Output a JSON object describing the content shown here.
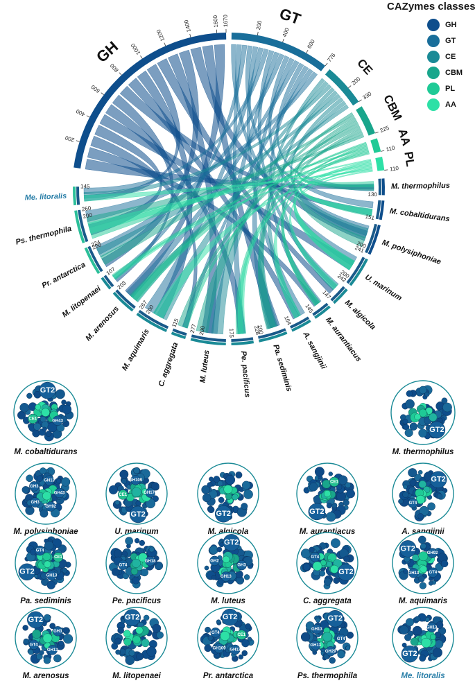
{
  "legend": {
    "title": "CAZymes classes",
    "items": [
      {
        "label": "GH",
        "color": "#0e4e8c"
      },
      {
        "label": "GT",
        "color": "#196e9a"
      },
      {
        "label": "CE",
        "color": "#1a8a96"
      },
      {
        "label": "CBM",
        "color": "#19a68c"
      },
      {
        "label": "PL",
        "color": "#1fca96"
      },
      {
        "label": "AA",
        "color": "#2de0a6"
      }
    ]
  },
  "chord": {
    "classes": [
      {
        "label": "GH",
        "ticks": [
          "200",
          "400",
          "600",
          "800",
          "1000",
          "1200",
          "1400",
          "1600"
        ],
        "end": "1670"
      },
      {
        "label": "GT",
        "ticks": [
          "200",
          "400",
          "600"
        ],
        "end": "776"
      },
      {
        "label": "CE",
        "ticks": [
          "200"
        ],
        "end": "330"
      },
      {
        "label": "CBM",
        "ticks": [],
        "end": "225"
      },
      {
        "label": "AA",
        "ticks": [],
        "end": "110"
      },
      {
        "label": "PL",
        "ticks": [],
        "end": "110"
      }
    ],
    "species": [
      {
        "label": "M. thermophilus",
        "ticks": [],
        "end": "130"
      },
      {
        "label": "M. cobaltidurans",
        "ticks": [],
        "end": "151"
      },
      {
        "label": "M. polysiphoniae",
        "ticks": [
          "200"
        ],
        "end": "241"
      },
      {
        "label": "U. marinum",
        "ticks": [
          "200"
        ],
        "end": "242"
      },
      {
        "label": "M. algicola",
        "ticks": [],
        "end": "147"
      },
      {
        "label": "M. aurantiacus",
        "ticks": [],
        "end": "145"
      },
      {
        "label": "A. sangjinii",
        "ticks": [],
        "end": "164"
      },
      {
        "label": "Pa. sediminis",
        "ticks": [
          "200"
        ],
        "end": "228"
      },
      {
        "label": "Pe. pacificus",
        "ticks": [],
        "end": "175"
      },
      {
        "label": "M. luteus",
        "ticks": [
          "200"
        ],
        "end": "277"
      },
      {
        "label": "C. aggregata",
        "ticks": [],
        "end": "115"
      },
      {
        "label": "M. aquimaris",
        "ticks": [
          "200"
        ],
        "end": "267"
      },
      {
        "label": "M. arenosus",
        "ticks": [],
        "end": "203"
      },
      {
        "label": "M. litopenaei",
        "ticks": [],
        "end": "107"
      },
      {
        "label": "Pr. antarctica",
        "ticks": [
          "200"
        ],
        "end": "224"
      },
      {
        "label": "Ps. thermophila",
        "ticks": [
          "200"
        ],
        "end": "260"
      },
      {
        "label": "Me. litoralis",
        "ticks": [],
        "end": "145",
        "color": "#2a7fa8"
      }
    ]
  },
  "networks": [
    {
      "label": "M. cobaltidurans",
      "tags": [
        "GH43",
        "CE1",
        "GT2"
      ]
    },
    {
      "label": "M. thermophilus",
      "tags": [
        "GT2"
      ]
    },
    {
      "label": "M. polysiphoniae",
      "tags": [
        "GH92",
        "GH3",
        "GH3",
        "GH13",
        "GH43"
      ]
    },
    {
      "label": "U. marinum",
      "tags": [
        "GT2",
        "CE1",
        "GH109",
        "GH170"
      ]
    },
    {
      "label": "M. algicola",
      "tags": [
        "GT2"
      ]
    },
    {
      "label": "M. aurantiacus",
      "tags": [
        "GT2",
        "CE1"
      ]
    },
    {
      "label": "A. sangjinii",
      "tags": [
        "GT4",
        "GT2"
      ]
    },
    {
      "label": "Pa. sediminis",
      "tags": [
        "GT2",
        "GT4",
        "CE1",
        "GH13"
      ]
    },
    {
      "label": "Pe. pacificus",
      "tags": [
        "GT4",
        "GH18"
      ]
    },
    {
      "label": "M. luteus",
      "tags": [
        "GH2",
        "GT2",
        "GH3",
        "GH13"
      ]
    },
    {
      "label": "C. aggregata",
      "tags": [
        "GT4",
        "GT2"
      ]
    },
    {
      "label": "M. aquimaris",
      "tags": [
        "GT2",
        "GH92",
        "GT4",
        "GH13"
      ]
    },
    {
      "label": "M. arenosus",
      "tags": [
        "GT2",
        "GH3",
        "GH13",
        "GT4"
      ]
    },
    {
      "label": "M. litopenaei",
      "tags": [
        "GT2"
      ]
    },
    {
      "label": "Pr. antarctica",
      "tags": [
        "GT2",
        "CE1",
        "GH13",
        "GH109",
        "GT4"
      ]
    },
    {
      "label": "Ps. thermophila",
      "tags": [
        "GT2",
        "GT4",
        "GH29",
        "GH13",
        "GH13"
      ]
    },
    {
      "label": "Me. litoralis",
      "tags": [
        "GH13",
        "GT2"
      ],
      "color": "#2a7fa8"
    }
  ]
}
